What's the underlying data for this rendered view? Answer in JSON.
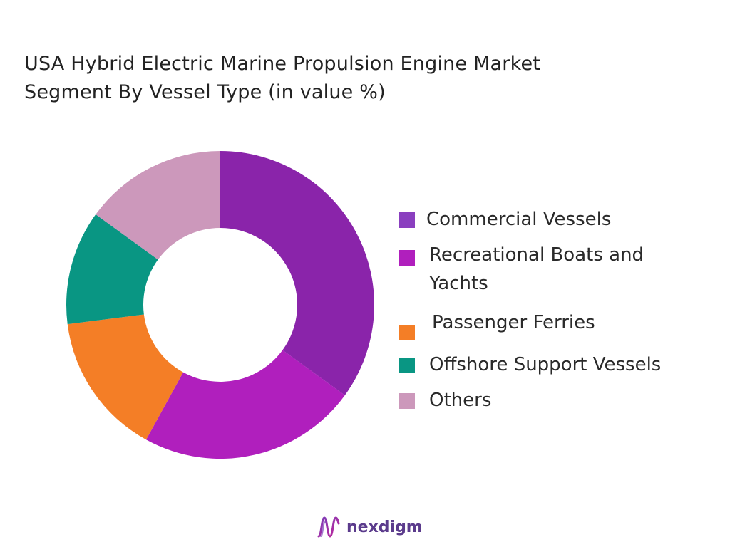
{
  "title_lines": [
    "USA Hybrid Electric Marine Propulsion Engine Market",
    "Segment By Vessel Type  (in value %)"
  ],
  "chart_data": {
    "type": "pie",
    "donut": true,
    "title": "USA Hybrid Electric Marine Propulsion Engine Market Segment By Vessel Type  (in value %)",
    "legend_position": "right",
    "slices": [
      {
        "label": "Commercial Vessels",
        "value": 35,
        "color": "#8a24aa"
      },
      {
        "label": "Recreational Boats and Yachts",
        "value": 23,
        "color": "#b01fbd"
      },
      {
        "label": "Passenger Ferries",
        "value": 15,
        "color": "#f47e26"
      },
      {
        "label": "Offshore Support Vessels",
        "value": 12,
        "color": "#099683"
      },
      {
        "label": "Others",
        "value": 15,
        "color": "#cc98bb"
      }
    ]
  },
  "legend": {
    "items": [
      {
        "label": "Commercial Vessels",
        "color": "#8a3fbf"
      },
      {
        "label": "Recreational Boats and Yachts",
        "color": "#b01fbd"
      },
      {
        "label": "Passenger Ferries",
        "color": "#f47e26"
      },
      {
        "label": "Offshore Support Vessels",
        "color": "#099683"
      },
      {
        "label": "Others",
        "color": "#cc98bb"
      }
    ]
  },
  "brand": {
    "name": "nexdigm",
    "logo_icon": "nexdigm-wave-icon",
    "color": "#5b3b8c"
  }
}
